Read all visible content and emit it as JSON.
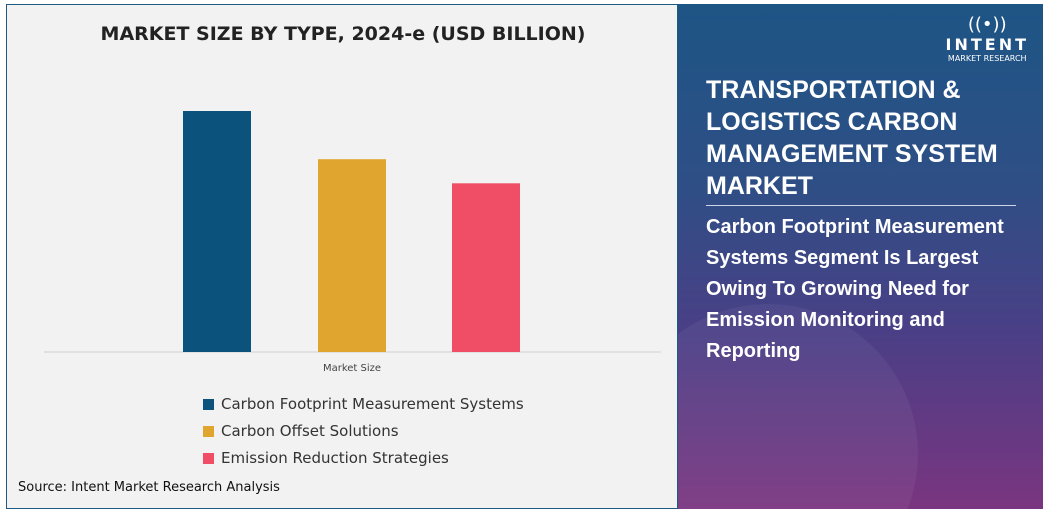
{
  "chart_data": {
    "type": "bar",
    "title": "MARKET SIZE BY TYPE, 2024-e (USD BILLION)",
    "categories": [
      "Market Size"
    ],
    "series": [
      {
        "name": "Carbon Footprint Measurement Systems",
        "values": [
          100
        ],
        "color": "#0b527c"
      },
      {
        "name": "Carbon Offset Solutions",
        "values": [
          80
        ],
        "color": "#e0a52e"
      },
      {
        "name": "Emission Reduction Strategies",
        "values": [
          70
        ],
        "color": "#ef4e66"
      }
    ],
    "ylim": [
      0,
      100
    ],
    "grid": false,
    "legend": "bottom"
  },
  "source": "Source: Intent Market Research Analysis",
  "logo": {
    "brand": "INTENT",
    "tagline": "MARKET RESEARCH"
  },
  "headline": "TRANSPORTATION & LOGISTICS CARBON MANAGEMENT SYSTEM MARKET",
  "subheadline": "Carbon Footprint Measurement Systems Segment Is Largest Owing To Growing Need for Emission Monitoring and Reporting"
}
